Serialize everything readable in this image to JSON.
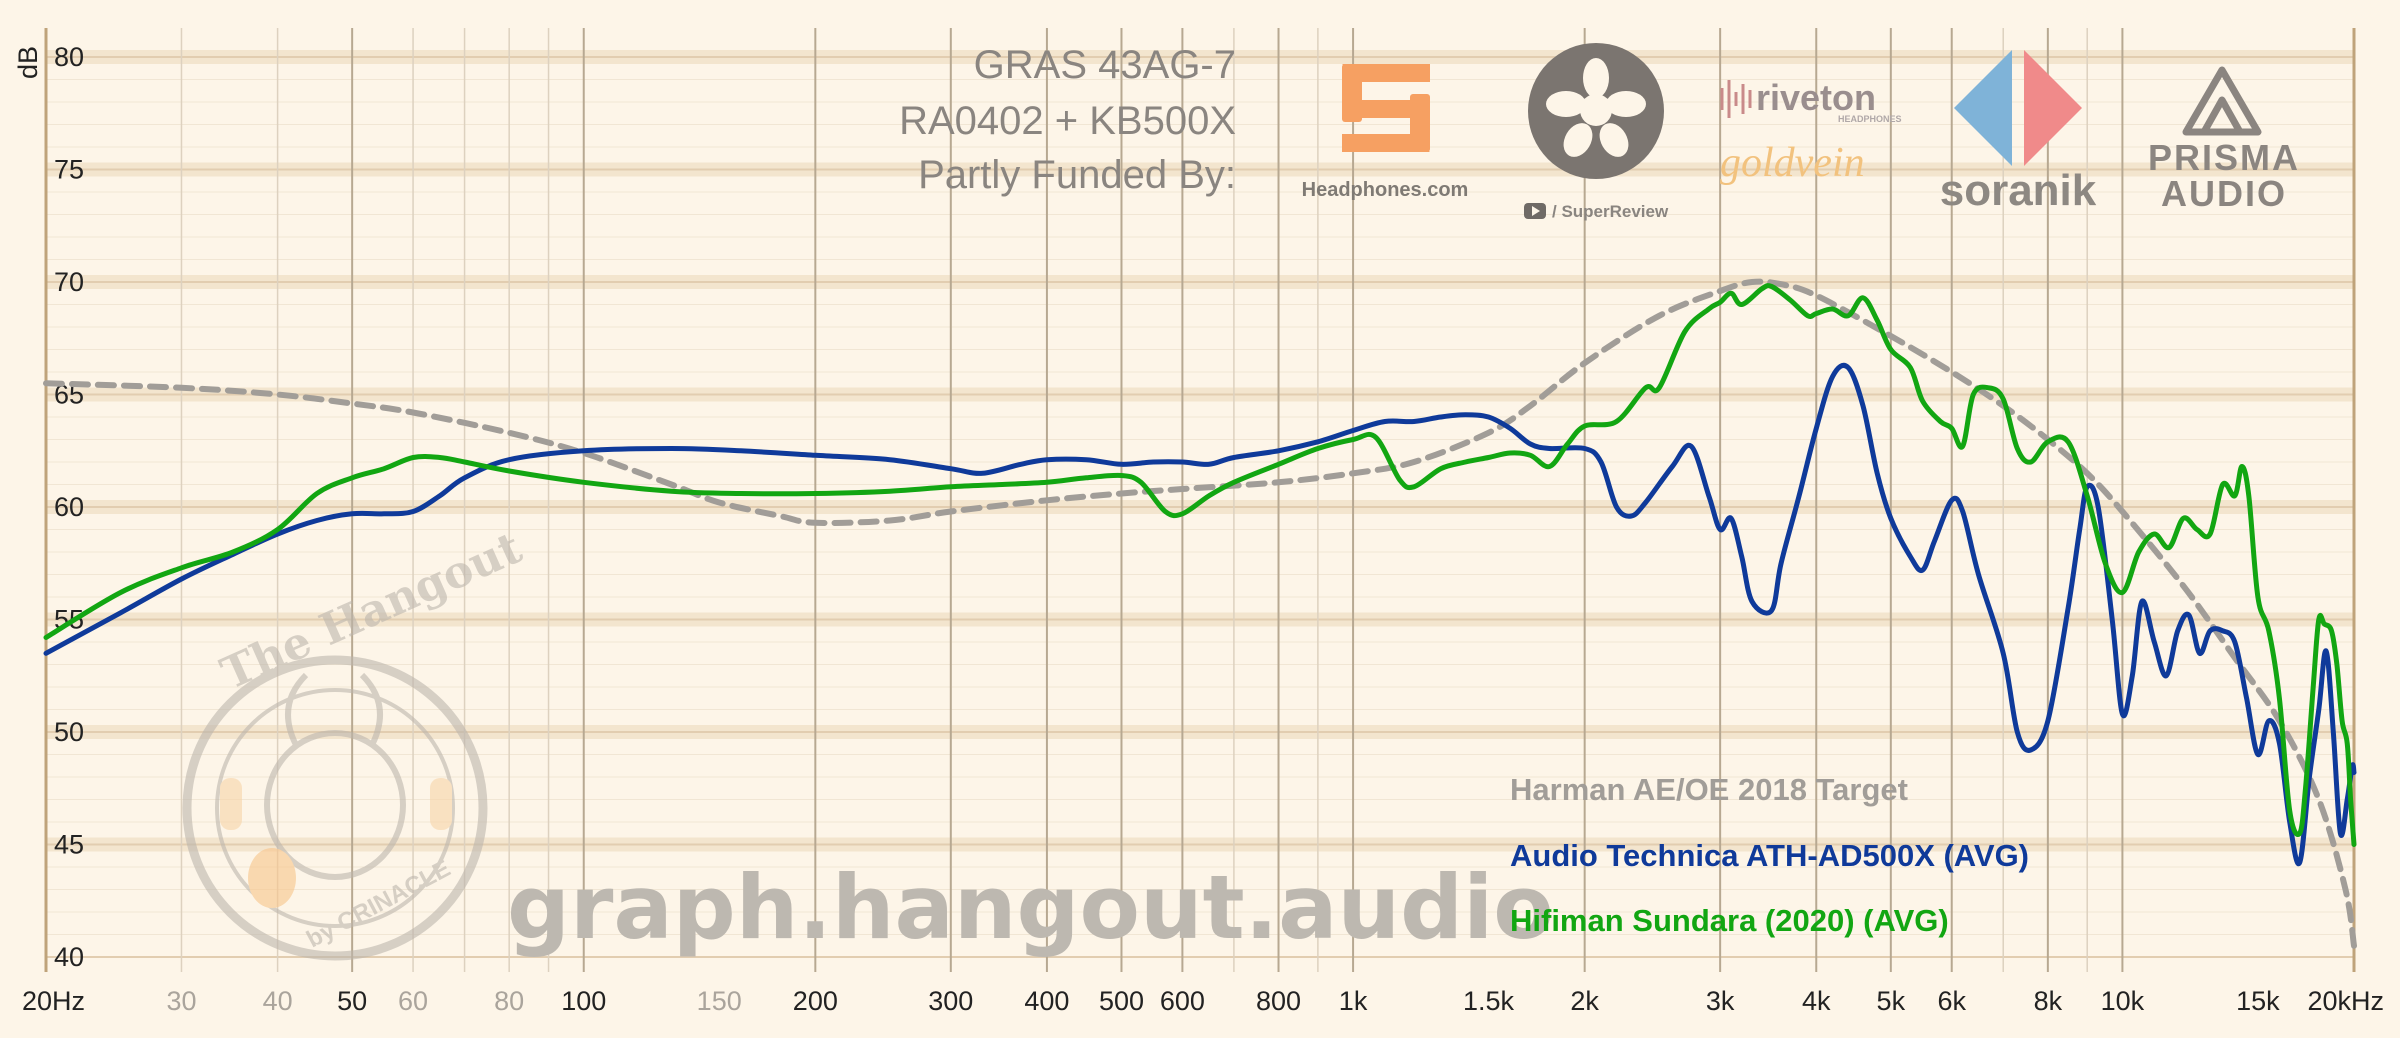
{
  "header": {
    "line1": "GRAS 43AG-7",
    "line2": "RA0402 + KB500X",
    "line3": "Partly Funded By:"
  },
  "sponsors": {
    "headphones": "Headphones.com",
    "superreview": "/ SuperReview",
    "riveton": "riveton",
    "riveton_sub": "HEADPHONES",
    "goldvein": "goldvein",
    "soranik": "soranik",
    "prisma1": "PRISMA",
    "prisma2": "AUDIO"
  },
  "watermark": {
    "url": "graph.hangout.audio",
    "badge_top": "The Hangout",
    "badge_bottom": "by CRINACLE"
  },
  "colors": {
    "background": "#fdf5e8",
    "target": "#a19d98",
    "series1": "#0f3a9a",
    "series2": "#12a612",
    "band": "#efdfc6"
  },
  "chart_data": {
    "type": "line",
    "title": "",
    "xlabel": "",
    "ylabel": "dB",
    "x_scale": "log",
    "xlim": [
      20,
      20000
    ],
    "ylim": [
      40,
      80
    ],
    "grid": true,
    "legend_position": "bottom-right",
    "y_ticks": [
      "80",
      "75",
      "70",
      "65",
      "60",
      "55",
      "50",
      "45",
      "40"
    ],
    "x_ticks": [
      {
        "f": 20,
        "label": "20Hz",
        "major": true
      },
      {
        "f": 30,
        "label": "30",
        "major": false
      },
      {
        "f": 40,
        "label": "40",
        "major": false
      },
      {
        "f": 50,
        "label": "50",
        "major": true
      },
      {
        "f": 60,
        "label": "60",
        "major": false
      },
      {
        "f": 80,
        "label": "80",
        "major": false
      },
      {
        "f": 100,
        "label": "100",
        "major": true
      },
      {
        "f": 150,
        "label": "150",
        "major": false
      },
      {
        "f": 200,
        "label": "200",
        "major": true
      },
      {
        "f": 300,
        "label": "300",
        "major": true
      },
      {
        "f": 400,
        "label": "400",
        "major": true
      },
      {
        "f": 500,
        "label": "500",
        "major": true
      },
      {
        "f": 600,
        "label": "600",
        "major": true
      },
      {
        "f": 800,
        "label": "800",
        "major": true
      },
      {
        "f": 1000,
        "label": "1k",
        "major": true
      },
      {
        "f": 1500,
        "label": "1.5k",
        "major": true
      },
      {
        "f": 2000,
        "label": "2k",
        "major": true
      },
      {
        "f": 3000,
        "label": "3k",
        "major": true
      },
      {
        "f": 4000,
        "label": "4k",
        "major": true
      },
      {
        "f": 5000,
        "label": "5k",
        "major": true
      },
      {
        "f": 6000,
        "label": "6k",
        "major": true
      },
      {
        "f": 8000,
        "label": "8k",
        "major": true
      },
      {
        "f": 10000,
        "label": "10k",
        "major": true
      },
      {
        "f": 15000,
        "label": "15k",
        "major": true
      },
      {
        "f": 20000,
        "label": "20kHz",
        "major": true
      }
    ],
    "series": [
      {
        "name": "Harman AE/OE 2018 Target",
        "color": "#a19d98",
        "dashed": true,
        "points": [
          [
            20,
            65.5
          ],
          [
            30,
            65.3
          ],
          [
            40,
            65.0
          ],
          [
            50,
            64.6
          ],
          [
            60,
            64.2
          ],
          [
            80,
            63.3
          ],
          [
            100,
            62.4
          ],
          [
            130,
            61.0
          ],
          [
            150,
            60.2
          ],
          [
            180,
            59.6
          ],
          [
            200,
            59.3
          ],
          [
            250,
            59.4
          ],
          [
            300,
            59.8
          ],
          [
            400,
            60.3
          ],
          [
            500,
            60.6
          ],
          [
            600,
            60.8
          ],
          [
            800,
            61.1
          ],
          [
            1000,
            61.5
          ],
          [
            1200,
            62.0
          ],
          [
            1500,
            63.3
          ],
          [
            1700,
            64.5
          ],
          [
            2000,
            66.4
          ],
          [
            2500,
            68.5
          ],
          [
            3000,
            69.6
          ],
          [
            3300,
            70.0
          ],
          [
            3600,
            69.9
          ],
          [
            4000,
            69.4
          ],
          [
            5000,
            67.6
          ],
          [
            6000,
            66.0
          ],
          [
            7000,
            64.5
          ],
          [
            8000,
            63.0
          ],
          [
            9000,
            61.5
          ],
          [
            10000,
            59.8
          ],
          [
            12000,
            56.5
          ],
          [
            14000,
            53.3
          ],
          [
            16000,
            50.5
          ],
          [
            18000,
            47.0
          ],
          [
            19500,
            43.0
          ],
          [
            20000,
            40.5
          ]
        ]
      },
      {
        "name": "Audio Technica ATH-AD500X (AVG)",
        "color": "#0f3a9a",
        "dashed": false,
        "points": [
          [
            20,
            53.5
          ],
          [
            25,
            55.3
          ],
          [
            30,
            56.8
          ],
          [
            35,
            57.9
          ],
          [
            40,
            58.8
          ],
          [
            45,
            59.4
          ],
          [
            50,
            59.7
          ],
          [
            55,
            59.7
          ],
          [
            60,
            59.8
          ],
          [
            65,
            60.5
          ],
          [
            70,
            61.3
          ],
          [
            80,
            62.1
          ],
          [
            100,
            62.5
          ],
          [
            130,
            62.6
          ],
          [
            160,
            62.5
          ],
          [
            200,
            62.3
          ],
          [
            250,
            62.1
          ],
          [
            300,
            61.7
          ],
          [
            330,
            61.5
          ],
          [
            370,
            61.9
          ],
          [
            400,
            62.1
          ],
          [
            450,
            62.1
          ],
          [
            500,
            61.9
          ],
          [
            550,
            62.0
          ],
          [
            600,
            62.0
          ],
          [
            650,
            61.9
          ],
          [
            700,
            62.2
          ],
          [
            800,
            62.5
          ],
          [
            900,
            62.9
          ],
          [
            1000,
            63.4
          ],
          [
            1100,
            63.8
          ],
          [
            1200,
            63.8
          ],
          [
            1300,
            64.0
          ],
          [
            1400,
            64.1
          ],
          [
            1500,
            64.0
          ],
          [
            1600,
            63.5
          ],
          [
            1700,
            62.8
          ],
          [
            1800,
            62.6
          ],
          [
            2000,
            62.6
          ],
          [
            2100,
            62.0
          ],
          [
            2200,
            60.0
          ],
          [
            2300,
            59.6
          ],
          [
            2400,
            60.2
          ],
          [
            2600,
            61.8
          ],
          [
            2750,
            62.7
          ],
          [
            2900,
            60.5
          ],
          [
            3000,
            59.0
          ],
          [
            3100,
            59.5
          ],
          [
            3200,
            57.8
          ],
          [
            3300,
            55.8
          ],
          [
            3500,
            55.4
          ],
          [
            3600,
            57.5
          ],
          [
            3800,
            60.5
          ],
          [
            4000,
            63.5
          ],
          [
            4200,
            65.8
          ],
          [
            4400,
            66.2
          ],
          [
            4600,
            64.5
          ],
          [
            4800,
            61.5
          ],
          [
            5000,
            59.5
          ],
          [
            5300,
            57.8
          ],
          [
            5500,
            57.2
          ],
          [
            5700,
            58.5
          ],
          [
            6000,
            60.3
          ],
          [
            6200,
            59.8
          ],
          [
            6500,
            57.0
          ],
          [
            7000,
            53.5
          ],
          [
            7300,
            50.0
          ],
          [
            7600,
            49.2
          ],
          [
            8000,
            50.5
          ],
          [
            8500,
            55.5
          ],
          [
            8800,
            59.0
          ],
          [
            9000,
            60.9
          ],
          [
            9300,
            60.0
          ],
          [
            9700,
            55.0
          ],
          [
            10000,
            50.8
          ],
          [
            10300,
            52.5
          ],
          [
            10600,
            55.8
          ],
          [
            11000,
            54.0
          ],
          [
            11400,
            52.5
          ],
          [
            11800,
            54.5
          ],
          [
            12200,
            55.2
          ],
          [
            12600,
            53.5
          ],
          [
            13000,
            54.5
          ],
          [
            13500,
            54.5
          ],
          [
            14000,
            54.0
          ],
          [
            14500,
            51.5
          ],
          [
            15000,
            49.0
          ],
          [
            15500,
            50.5
          ],
          [
            16000,
            49.5
          ],
          [
            16500,
            46.0
          ],
          [
            17000,
            44.2
          ],
          [
            17500,
            48.0
          ],
          [
            18000,
            51.0
          ],
          [
            18400,
            53.6
          ],
          [
            18800,
            50.0
          ],
          [
            19200,
            45.5
          ],
          [
            19600,
            47.0
          ],
          [
            19900,
            48.5
          ],
          [
            20000,
            48.2
          ]
        ]
      },
      {
        "name": "Hifiman Sundara (2020) (AVG)",
        "color": "#12a612",
        "dashed": false,
        "points": [
          [
            20,
            54.2
          ],
          [
            25,
            56.2
          ],
          [
            30,
            57.3
          ],
          [
            35,
            58.0
          ],
          [
            40,
            59.0
          ],
          [
            45,
            60.6
          ],
          [
            50,
            61.3
          ],
          [
            55,
            61.7
          ],
          [
            60,
            62.2
          ],
          [
            65,
            62.2
          ],
          [
            70,
            62.0
          ],
          [
            80,
            61.6
          ],
          [
            100,
            61.1
          ],
          [
            130,
            60.7
          ],
          [
            160,
            60.6
          ],
          [
            200,
            60.6
          ],
          [
            250,
            60.7
          ],
          [
            300,
            60.9
          ],
          [
            350,
            61.0
          ],
          [
            400,
            61.1
          ],
          [
            450,
            61.3
          ],
          [
            500,
            61.4
          ],
          [
            530,
            61.1
          ],
          [
            570,
            59.8
          ],
          [
            600,
            59.7
          ],
          [
            650,
            60.5
          ],
          [
            700,
            61.1
          ],
          [
            800,
            61.9
          ],
          [
            900,
            62.6
          ],
          [
            1000,
            63.0
          ],
          [
            1070,
            63.1
          ],
          [
            1150,
            61.2
          ],
          [
            1200,
            60.9
          ],
          [
            1300,
            61.7
          ],
          [
            1400,
            62.0
          ],
          [
            1500,
            62.2
          ],
          [
            1600,
            62.4
          ],
          [
            1700,
            62.3
          ],
          [
            1800,
            61.8
          ],
          [
            1900,
            62.8
          ],
          [
            2000,
            63.6
          ],
          [
            2200,
            63.8
          ],
          [
            2400,
            65.3
          ],
          [
            2500,
            65.3
          ],
          [
            2700,
            67.8
          ],
          [
            2900,
            68.8
          ],
          [
            3000,
            69.1
          ],
          [
            3100,
            69.5
          ],
          [
            3200,
            69.0
          ],
          [
            3400,
            69.7
          ],
          [
            3500,
            69.8
          ],
          [
            3700,
            69.2
          ],
          [
            3900,
            68.5
          ],
          [
            4000,
            68.6
          ],
          [
            4200,
            68.8
          ],
          [
            4400,
            68.5
          ],
          [
            4600,
            69.3
          ],
          [
            4800,
            68.3
          ],
          [
            5000,
            67.0
          ],
          [
            5300,
            66.2
          ],
          [
            5500,
            64.7
          ],
          [
            5800,
            63.8
          ],
          [
            6000,
            63.5
          ],
          [
            6200,
            62.7
          ],
          [
            6400,
            65.0
          ],
          [
            6700,
            65.3
          ],
          [
            7000,
            64.8
          ],
          [
            7300,
            62.6
          ],
          [
            7600,
            62.0
          ],
          [
            8000,
            62.9
          ],
          [
            8500,
            62.9
          ],
          [
            9000,
            60.5
          ],
          [
            9500,
            57.5
          ],
          [
            10000,
            56.2
          ],
          [
            10500,
            58.0
          ],
          [
            11000,
            58.8
          ],
          [
            11500,
            58.2
          ],
          [
            12000,
            59.5
          ],
          [
            12500,
            59.0
          ],
          [
            13000,
            58.8
          ],
          [
            13500,
            61.0
          ],
          [
            14000,
            60.5
          ],
          [
            14300,
            61.8
          ],
          [
            14600,
            60.5
          ],
          [
            15000,
            56.0
          ],
          [
            15500,
            54.5
          ],
          [
            16000,
            51.5
          ],
          [
            16500,
            46.5
          ],
          [
            17000,
            45.5
          ],
          [
            17300,
            47.5
          ],
          [
            17700,
            52.0
          ],
          [
            18000,
            55.0
          ],
          [
            18300,
            54.8
          ],
          [
            18700,
            54.5
          ],
          [
            19000,
            53.0
          ],
          [
            19300,
            50.5
          ],
          [
            19600,
            49.5
          ],
          [
            19800,
            47.0
          ],
          [
            20000,
            45.0
          ]
        ]
      }
    ]
  }
}
